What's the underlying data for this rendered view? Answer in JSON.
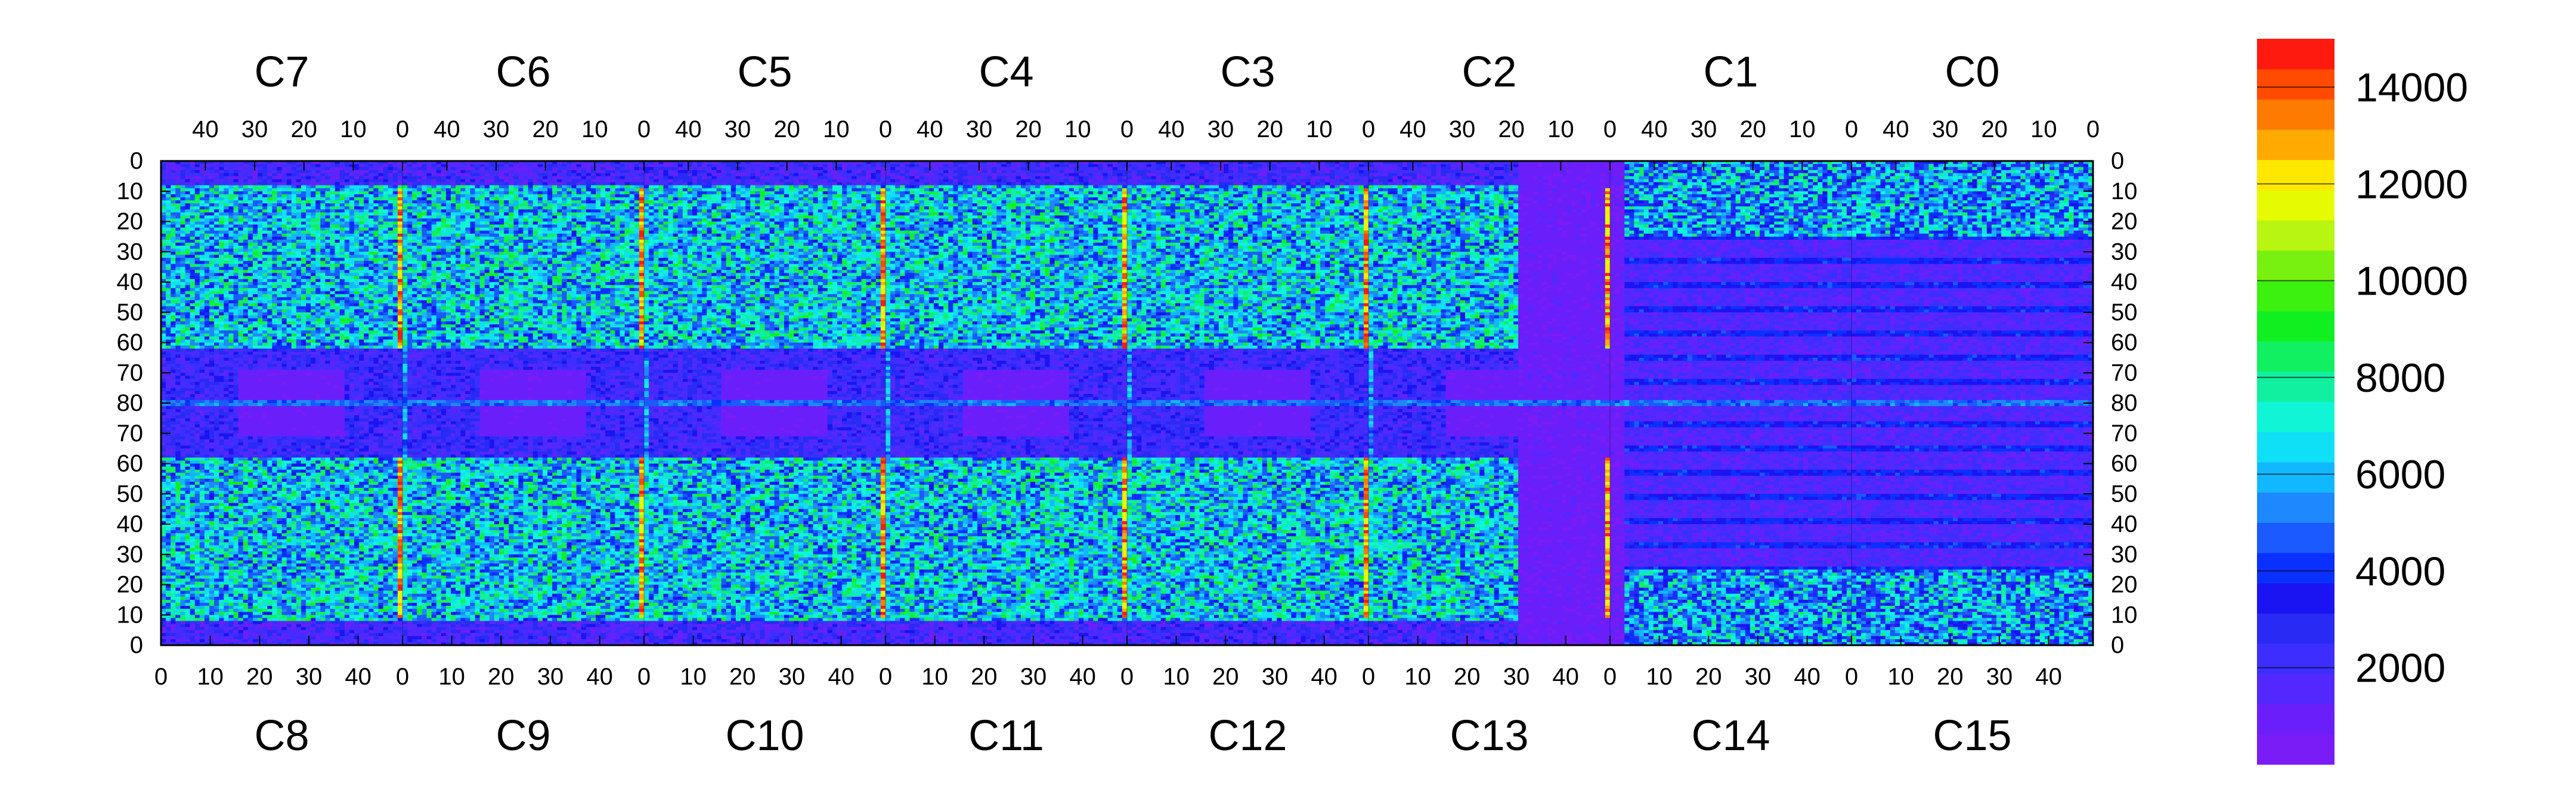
{
  "chart_data": {
    "type": "heatmap",
    "title": "",
    "x_axis": {
      "range": [
        0,
        50
      ]
    },
    "y_axis": {
      "top_rows": [
        0,
        80
      ],
      "bottom_rows": [
        80,
        0
      ],
      "tick_labels_top_half": [
        "0",
        "10",
        "20",
        "30",
        "40",
        "50",
        "60",
        "70",
        "80"
      ],
      "tick_labels_bottom_half": [
        "70",
        "60",
        "50",
        "40",
        "30",
        "20",
        "10",
        "0"
      ]
    },
    "top_chips": [
      {
        "label": "C7",
        "x_ticks": [
          "40",
          "30",
          "20",
          "10",
          "0"
        ]
      },
      {
        "label": "C6",
        "x_ticks": [
          "40",
          "30",
          "20",
          "10",
          "0"
        ]
      },
      {
        "label": "C5",
        "x_ticks": [
          "40",
          "30",
          "20",
          "10",
          "0"
        ]
      },
      {
        "label": "C4",
        "x_ticks": [
          "40",
          "30",
          "20",
          "10",
          "0"
        ]
      },
      {
        "label": "C3",
        "x_ticks": [
          "40",
          "30",
          "20",
          "10",
          "0"
        ]
      },
      {
        "label": "C2",
        "x_ticks": [
          "40",
          "30",
          "20",
          "10",
          "0"
        ]
      },
      {
        "label": "C1",
        "x_ticks": [
          "40",
          "30",
          "20",
          "10",
          "0"
        ]
      },
      {
        "label": "C0",
        "x_ticks": [
          "40",
          "30",
          "20",
          "10",
          "0"
        ]
      }
    ],
    "bottom_chips": [
      {
        "label": "C8",
        "x_ticks": [
          "0",
          "10",
          "20",
          "30",
          "40"
        ]
      },
      {
        "label": "C9",
        "x_ticks": [
          "0",
          "10",
          "20",
          "30",
          "40"
        ]
      },
      {
        "label": "C10",
        "x_ticks": [
          "0",
          "10",
          "20",
          "30",
          "40"
        ]
      },
      {
        "label": "C11",
        "x_ticks": [
          "0",
          "10",
          "20",
          "30",
          "40"
        ]
      },
      {
        "label": "C12",
        "x_ticks": [
          "0",
          "10",
          "20",
          "30",
          "40"
        ]
      },
      {
        "label": "C13",
        "x_ticks": [
          "0",
          "10",
          "20",
          "30",
          "40"
        ]
      },
      {
        "label": "C14",
        "x_ticks": [
          "0",
          "10",
          "20",
          "30",
          "40"
        ]
      },
      {
        "label": "C15",
        "x_ticks": [
          "0",
          "10",
          "20",
          "30",
          "40"
        ]
      }
    ],
    "colorbar": {
      "range": [
        0,
        15000
      ],
      "tick_labels": [
        "2000",
        "4000",
        "6000",
        "8000",
        "10000",
        "12000",
        "14000"
      ],
      "tick_values": [
        2000,
        4000,
        6000,
        8000,
        10000,
        12000,
        14000
      ],
      "colors": [
        "#7A1CF5",
        "#6A1FFA",
        "#5228FF",
        "#3D2EFF",
        "#2A2AF5",
        "#1A14F2",
        "#0A30FF",
        "#1A5AFF",
        "#1E88FF",
        "#12B8FF",
        "#0FE0F5",
        "#10F5D5",
        "#10F0A0",
        "#10F060",
        "#10F020",
        "#3CF010",
        "#78F010",
        "#B8F510",
        "#E6FA00",
        "#FFE800",
        "#FFAA00",
        "#FF7A00",
        "#FF4A00",
        "#FF1A10"
      ]
    },
    "features": {
      "red_column_at_x0_of_chips": [
        "C7",
        "C6",
        "C5",
        "C4",
        "C3"
      ],
      "hot_columns_values_approx": [
        13000,
        14000
      ],
      "background_value_approx": 600,
      "dense_region_value_approx": 7000,
      "low_region_chips": [
        "C13",
        "C14"
      ]
    }
  }
}
